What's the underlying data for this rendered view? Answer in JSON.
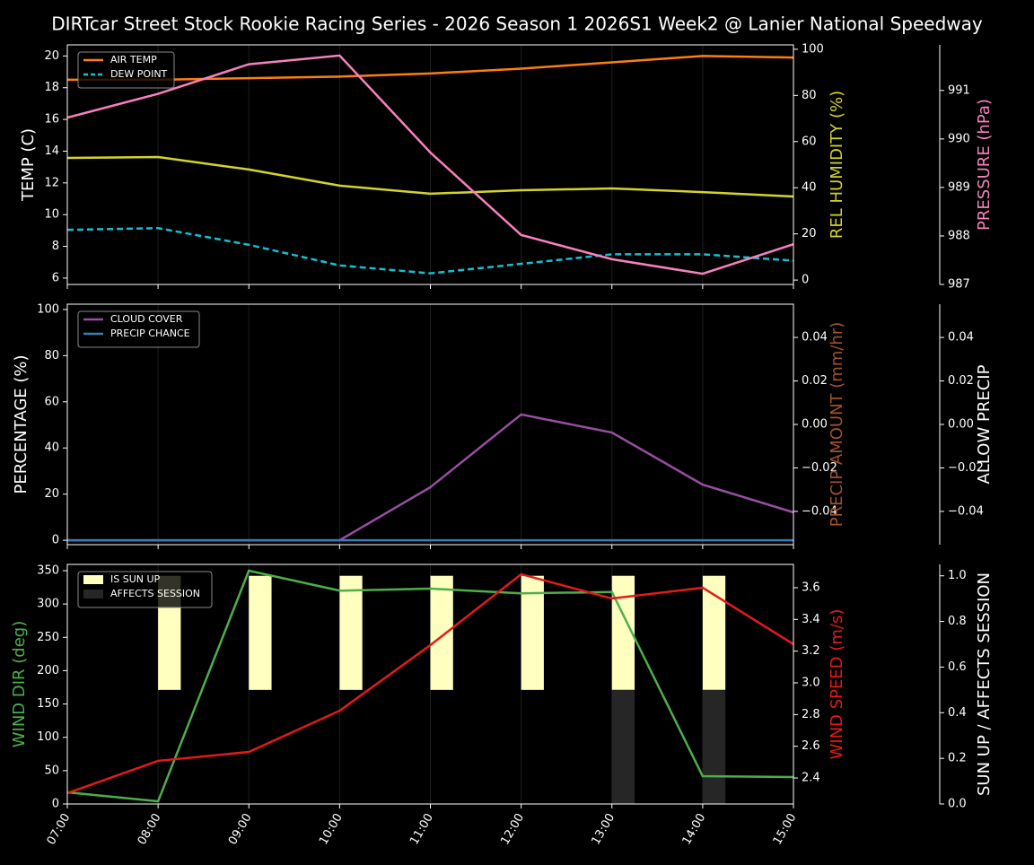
{
  "title": "DIRTcar Street Stock Rookie Racing Series - 2026 Season 1 2026S1 Week2 @ Lanier National Speedway",
  "chart_data": [
    {
      "type": "line",
      "legend": "upper left",
      "categories": [
        "07:00",
        "08:00",
        "09:00",
        "10:00",
        "11:00",
        "12:00",
        "13:00",
        "14:00",
        "15:00"
      ],
      "axes": {
        "y": {
          "label": "TEMP (C)",
          "color": "#ffffff",
          "lim": [
            5.6,
            20.7
          ],
          "ticks": [
            6,
            8,
            10,
            12,
            14,
            16,
            18,
            20
          ]
        },
        "y2": {
          "label": "REL HUMIDITY (%)",
          "color": "#d4d42a",
          "lim": [
            -1.9,
            101.9
          ],
          "ticks": [
            0,
            20,
            40,
            60,
            80,
            100
          ]
        },
        "y3": {
          "label": "PRESSURE (hPa)",
          "color": "#f781bf",
          "lim": [
            987,
            991.94
          ],
          "ticks": [
            987,
            988,
            989,
            990,
            991
          ]
        }
      },
      "series": [
        {
          "name": "AIR TEMP",
          "color": "#ff7f0e",
          "axis": "y",
          "values": [
            18.5,
            18.5,
            18.6,
            18.7,
            18.9,
            19.2,
            19.6,
            20.0,
            19.9
          ]
        },
        {
          "name": "DEW POINT",
          "color": "#17becf",
          "axis": "y",
          "dashed": true,
          "values": [
            9.04,
            9.15,
            8.1,
            6.8,
            6.3,
            6.9,
            7.5,
            7.5,
            7.1
          ]
        },
        {
          "color": "#d4d42a",
          "axis": "y2",
          "values": [
            52.9,
            53.3,
            47.9,
            40.9,
            37.4,
            38.9,
            39.7,
            38.1,
            36.2
          ]
        },
        {
          "color": "#f781bf",
          "axis": "y3",
          "values": [
            990.44,
            990.93,
            991.54,
            991.72,
            989.72,
            988.02,
            987.52,
            987.22,
            987.83
          ]
        }
      ]
    },
    {
      "type": "line",
      "legend": "upper left",
      "categories": [
        "07:00",
        "08:00",
        "09:00",
        "10:00",
        "11:00",
        "12:00",
        "13:00",
        "14:00",
        "15:00"
      ],
      "axes": {
        "y": {
          "label": "PERCENTAGE (%)",
          "color": "#ffffff",
          "lim": [
            -1.9,
            102.3
          ],
          "ticks": [
            0,
            20,
            40,
            60,
            80,
            100
          ]
        },
        "y2": {
          "label": "PRECIP AMOUNT (mm/hr)",
          "color": "#a0522d",
          "lim": [
            -0.0553,
            0.0553
          ],
          "ticks": [
            {
              "value": -0.04,
              "label": "−0.04"
            },
            {
              "value": -0.02,
              "label": "−0.02"
            },
            {
              "value": 0,
              "label": "0.00"
            },
            0.02,
            0.04
          ]
        },
        "y3": {
          "label": "ALLOW PRECIP",
          "color": "#ffffff",
          "lim": [
            -0.0553,
            0.0553
          ],
          "ticks": [
            {
              "value": -0.04,
              "label": "−0.04"
            },
            {
              "value": -0.02,
              "label": "−0.02"
            },
            {
              "value": 0,
              "label": "0.00"
            },
            0.02,
            0.04
          ]
        }
      },
      "series": [
        {
          "name": "CLOUD COVER",
          "color": "#984ea3",
          "axis": "y",
          "values": [
            0,
            0,
            0,
            0,
            23,
            54.5,
            46.7,
            24.1,
            12.1
          ]
        },
        {
          "name": "PRECIP CHANCE",
          "color": "#377eb8",
          "axis": "y",
          "values": [
            0,
            0,
            0,
            0,
            0,
            0,
            0,
            0,
            0
          ]
        }
      ]
    },
    {
      "type": "line",
      "legend": "upper left",
      "categories": [
        "07:00",
        "08:00",
        "09:00",
        "10:00",
        "11:00",
        "12:00",
        "13:00",
        "14:00",
        "15:00"
      ],
      "axes": {
        "y": {
          "label": "WIND DIR (deg)",
          "color": "#4daf4a",
          "lim": [
            0,
            359.4
          ],
          "ticks": [
            0,
            50,
            100,
            150,
            200,
            250,
            300,
            350
          ]
        },
        "y2": {
          "label": "WIND SPEED (m/s)",
          "color": "#e41a1c",
          "lim": [
            2.236,
            3.747
          ],
          "ticks": [
            2.4,
            2.6,
            2.8,
            {
              "value": 3,
              "label": "3.0"
            },
            3.2,
            3.4,
            3.6
          ]
        },
        "y3": {
          "label": "SUN UP / AFFECTS SESSION",
          "color": "#ffffff",
          "lim": [
            0,
            1.05
          ],
          "ticks": [
            {
              "value": 0,
              "label": "0.0"
            },
            0.2,
            0.4,
            0.6,
            0.8,
            {
              "value": 1,
              "label": "1.0"
            }
          ]
        }
      },
      "series": [
        {
          "name": "IS SUN UP",
          "type": "bar",
          "color": "#ffffc0",
          "axis": "y3",
          "bottom": 0.5,
          "values": [
            0,
            0.5,
            0.5,
            0.5,
            0.5,
            0.5,
            0.5,
            0.5,
            0
          ]
        },
        {
          "name": "AFFECTS SESSION",
          "type": "bar",
          "color": "#262626",
          "axis": "y3",
          "bottom": 0,
          "values": [
            0,
            0,
            0,
            0,
            0,
            0,
            0.5,
            0.5,
            0
          ]
        },
        {
          "color": "#4daf4a",
          "axis": "y",
          "values": [
            17.5,
            4,
            350,
            320,
            323,
            316,
            318,
            41.7,
            40.4
          ]
        },
        {
          "color": "#e41a1c",
          "axis": "y2",
          "values": [
            2.304,
            2.508,
            2.564,
            2.824,
            3.238,
            3.685,
            3.532,
            3.6,
            3.244
          ]
        }
      ]
    }
  ]
}
